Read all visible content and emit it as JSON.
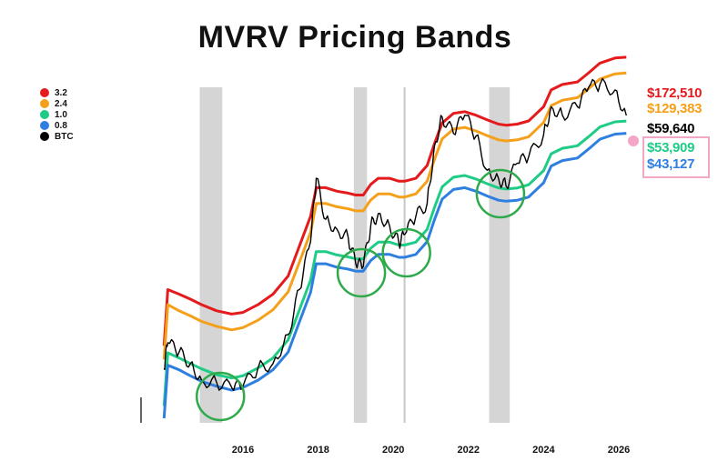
{
  "title": "MVRV Pricing Bands",
  "legend": [
    {
      "label": "3.2",
      "color": "#e41a1c"
    },
    {
      "label": "2.4",
      "color": "#f5a01a"
    },
    {
      "label": "1.0",
      "color": "#1fcc86"
    },
    {
      "label": "0.8",
      "color": "#2f7fe0"
    },
    {
      "label": "BTC",
      "color": "#000000"
    }
  ],
  "current_prices": [
    {
      "label": "$172,510",
      "color": "#e41a1c"
    },
    {
      "label": "$129,383",
      "color": "#f5a01a"
    },
    {
      "label": "$59,640",
      "color": "#000000"
    },
    {
      "label": "$53,909",
      "color": "#1fcc86"
    },
    {
      "label": "$43,127",
      "color": "#2f7fe0"
    }
  ],
  "chart_data": {
    "type": "line",
    "title": "MVRV Pricing Bands",
    "x_ticks": [
      "2016",
      "2018",
      "2020",
      "2022",
      "2024",
      "2026"
    ],
    "x_tick_years": [
      2016,
      2018,
      2020,
      2022,
      2024,
      2026
    ],
    "y_scale": "log",
    "grid": false,
    "legend_position": "top-left",
    "shaded_periods": [
      [
        2014.85,
        2015.45
      ],
      [
        2018.95,
        2019.3
      ],
      [
        2022.55,
        2023.1
      ]
    ],
    "vertical_marker": 2020.3,
    "highlight_circles": [
      2015.4,
      2019.15,
      2020.35,
      2022.85
    ],
    "x": [
      2013.9,
      2014.0,
      2014.3,
      2014.6,
      2014.9,
      2015.3,
      2015.7,
      2016.0,
      2016.4,
      2016.8,
      2017.2,
      2017.5,
      2017.8,
      2017.95,
      2018.2,
      2018.5,
      2018.8,
      2019.0,
      2019.2,
      2019.4,
      2019.6,
      2019.9,
      2020.15,
      2020.3,
      2020.6,
      2020.9,
      2021.1,
      2021.3,
      2021.6,
      2021.9,
      2022.2,
      2022.5,
      2022.8,
      2023.0,
      2023.3,
      2023.6,
      2024.0,
      2024.2,
      2024.5,
      2024.9,
      2025.2,
      2025.5,
      2025.9,
      2026.2
    ],
    "series": [
      {
        "name": "3.2",
        "color": "#e41a1c",
        "values": [
          900,
          2500,
          2300,
          2100,
          1900,
          1700,
          1600,
          1650,
          1900,
          2300,
          3200,
          5500,
          9500,
          16000,
          16000,
          15000,
          14500,
          14000,
          14000,
          17000,
          19000,
          19000,
          18000,
          18000,
          19000,
          24000,
          36000,
          52000,
          62000,
          64000,
          60000,
          55000,
          51000,
          50000,
          51000,
          54000,
          70000,
          95000,
          105000,
          110000,
          130000,
          155000,
          170000,
          172510
        ]
      },
      {
        "name": "2.4",
        "color": "#f5a01a",
        "values": [
          700,
          1900,
          1700,
          1550,
          1400,
          1280,
          1200,
          1250,
          1430,
          1730,
          2400,
          4100,
          7100,
          12000,
          12000,
          11300,
          10900,
          10500,
          10500,
          12800,
          14300,
          14300,
          13500,
          13500,
          14300,
          18000,
          27000,
          39000,
          46500,
          48000,
          45000,
          41300,
          38300,
          37500,
          38300,
          40500,
          52500,
          71300,
          78800,
          82500,
          97500,
          116000,
          127500,
          129383
        ]
      },
      {
        "name": "1.0",
        "color": "#1fcc86",
        "values": [
          300,
          790,
          720,
          650,
          590,
          530,
          500,
          520,
          600,
          720,
          1000,
          1720,
          2970,
          5000,
          5000,
          4700,
          4530,
          4380,
          4380,
          5310,
          5940,
          5940,
          5630,
          5630,
          5940,
          7500,
          11250,
          16250,
          19380,
          20000,
          18750,
          17190,
          15940,
          15630,
          15940,
          16880,
          21880,
          29690,
          32810,
          34380,
          40630,
          48440,
          53130,
          53909
        ]
      },
      {
        "name": "0.8",
        "color": "#2f7fe0",
        "values": [
          240,
          630,
          580,
          520,
          470,
          430,
          400,
          420,
          480,
          580,
          800,
          1380,
          2380,
          4000,
          4000,
          3760,
          3630,
          3500,
          3500,
          4250,
          4750,
          4750,
          4500,
          4500,
          4750,
          6000,
          9000,
          13000,
          15500,
          16000,
          15000,
          13750,
          12750,
          12500,
          12750,
          13500,
          17500,
          23750,
          26250,
          27500,
          32500,
          38750,
          42500,
          43127
        ]
      },
      {
        "name": "BTC",
        "color": "#000000",
        "values": [
          600,
          950,
          800,
          650,
          480,
          460,
          420,
          430,
          600,
          650,
          1100,
          2500,
          6000,
          19000,
          9000,
          7500,
          6500,
          4000,
          3800,
          8000,
          10000,
          8000,
          5800,
          6800,
          9500,
          12000,
          35000,
          58000,
          43000,
          60000,
          41000,
          22000,
          19000,
          16500,
          25000,
          28000,
          42000,
          70000,
          60000,
          70000,
          100000,
          105000,
          95000,
          59640
        ]
      }
    ]
  }
}
